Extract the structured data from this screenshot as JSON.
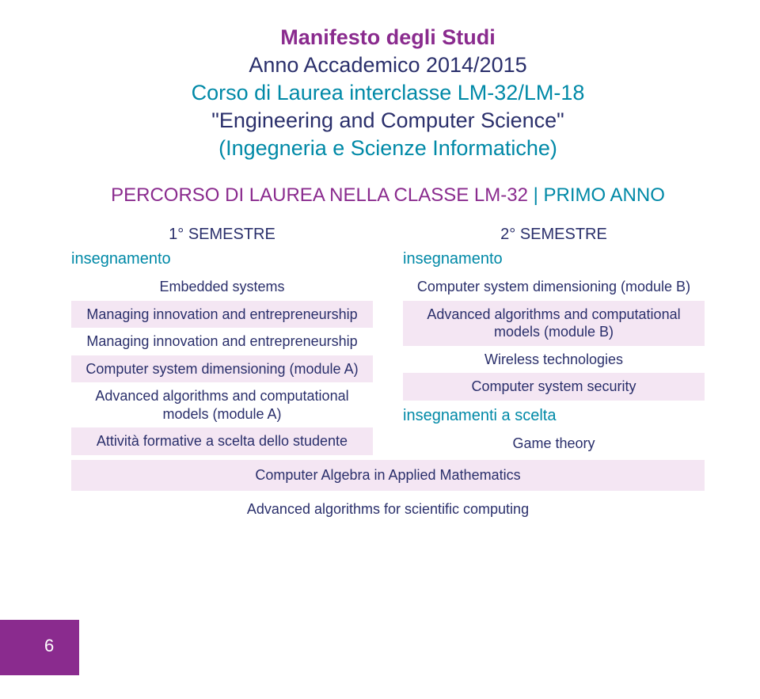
{
  "colors": {
    "purple": "#8a2b8e",
    "teal": "#0089a7",
    "darkText": "#2a2f6b",
    "evenRow": "#f4e6f3",
    "pageBand": "#8a2b8e"
  },
  "header": {
    "title": "Manifesto degli Studi",
    "year": "Anno Accademico 2014/2015",
    "course": "Corso di Laurea interclasse LM-32/LM-18",
    "quoted": "\"Engineering and Computer Science\"",
    "paren": "(Ingegneria e Scienze Informatiche)"
  },
  "sectionHeader": {
    "left": "PERCORSO DI LAUREA NELLA CLASSE LM-32",
    "right": " | PRIMO ANNO"
  },
  "left": {
    "semester": "1° SEMESTRE",
    "groupLabel": "insegnamento",
    "items": [
      "Embedded systems",
      "Managing innovation and entrepreneurship",
      "Managing innovation and entrepreneurship",
      "Computer system dimensioning (module A)",
      "Advanced algorithms and computational models (module A)",
      "Attività formative a scelta dello studente"
    ]
  },
  "right": {
    "semester": "2° SEMESTRE",
    "groupLabel1": "insegnamento",
    "items1": [
      "Computer system dimensioning (module B)",
      "Advanced algorithms and computational models (module B)",
      "Wireless technologies",
      "Computer system security"
    ],
    "groupLabel2": "insegnamenti a scelta",
    "items2": [
      "Game theory"
    ]
  },
  "fullWidth": [
    "Computer Algebra in Applied Mathematics",
    "Advanced algorithms for scientific computing"
  ],
  "pageNumber": "6"
}
